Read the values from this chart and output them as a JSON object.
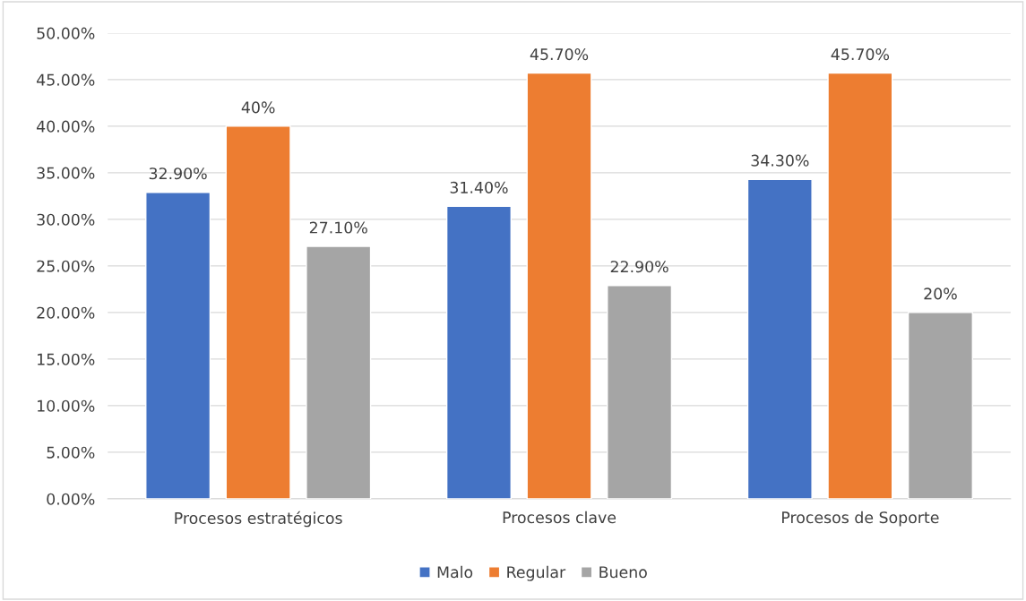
{
  "chart_data": {
    "type": "bar",
    "categories": [
      "Procesos estratégicos",
      "Procesos clave",
      "Procesos de Soporte"
    ],
    "series": [
      {
        "name": "Malo",
        "color": "#4472c4",
        "values": [
          32.9,
          31.4,
          34.3
        ],
        "value_labels": [
          "32.90%",
          "31.40%",
          "34.30%"
        ]
      },
      {
        "name": "Regular",
        "color": "#ed7d31",
        "values": [
          40,
          45.7,
          45.7
        ],
        "value_labels": [
          "40%",
          "45.70%",
          "45.70%"
        ]
      },
      {
        "name": "Bueno",
        "color": "#a5a5a5",
        "values": [
          27.1,
          22.9,
          20
        ],
        "value_labels": [
          "27.10%",
          "22.90%",
          "20%"
        ]
      }
    ],
    "ylim": [
      0,
      50
    ],
    "yticks": [
      {
        "value": 0,
        "label": "0.00%"
      },
      {
        "value": 5,
        "label": "5.00%"
      },
      {
        "value": 10,
        "label": "10.00%"
      },
      {
        "value": 15,
        "label": "15.00%"
      },
      {
        "value": 20,
        "label": "20.00%"
      },
      {
        "value": 25,
        "label": "25.00%"
      },
      {
        "value": 30,
        "label": "30.00%"
      },
      {
        "value": 35,
        "label": "35.00%"
      },
      {
        "value": 40,
        "label": "40.00%"
      },
      {
        "value": 45,
        "label": "45.00%"
      },
      {
        "value": 50,
        "label": "50.00%"
      }
    ],
    "grid": "y",
    "legend": "bottom"
  }
}
